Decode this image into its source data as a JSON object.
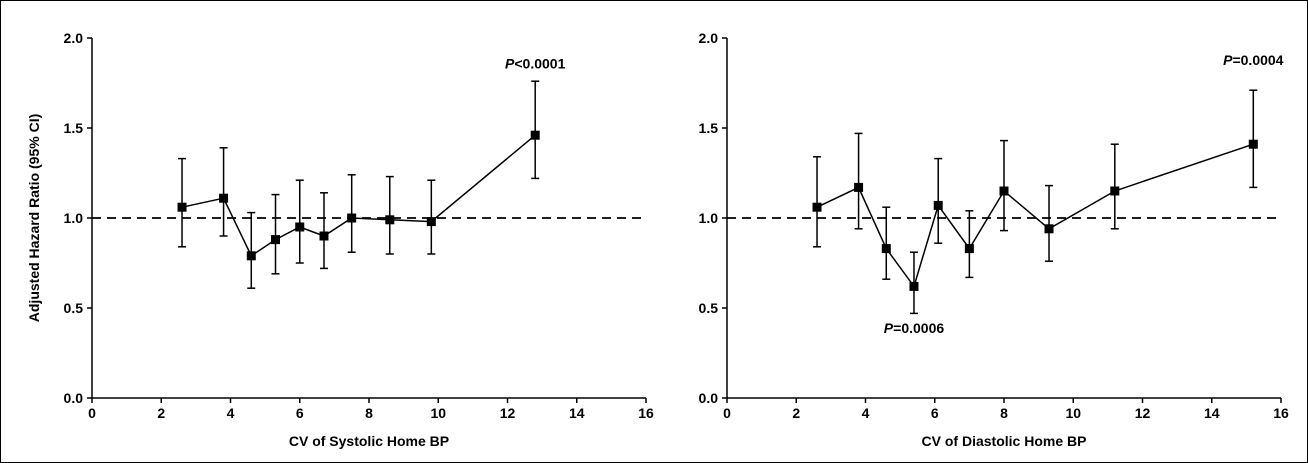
{
  "chart_data": [
    {
      "type": "scatter",
      "title": "",
      "xlabel": "CV of Systolic Home BP",
      "ylabel": "Adjusted Hazard Ratio (95% CI)",
      "xlim": [
        0,
        16
      ],
      "ylim": [
        0.0,
        2.0
      ],
      "xticks": [
        0,
        2,
        4,
        6,
        8,
        10,
        12,
        14,
        16
      ],
      "yticks": [
        0.0,
        0.5,
        1.0,
        1.5,
        2.0
      ],
      "reference_line": 1.0,
      "series": [
        {
          "x": [
            2.6,
            3.8,
            4.6,
            5.3,
            6.0,
            6.7,
            7.5,
            8.6,
            9.8,
            12.8
          ],
          "y": [
            1.06,
            1.11,
            0.79,
            0.88,
            0.95,
            0.9,
            1.0,
            0.99,
            0.98,
            1.46
          ],
          "lower": [
            0.84,
            0.9,
            0.61,
            0.69,
            0.75,
            0.72,
            0.81,
            0.8,
            0.8,
            1.22
          ],
          "upper": [
            1.33,
            1.39,
            1.03,
            1.13,
            1.21,
            1.14,
            1.24,
            1.23,
            1.21,
            1.76
          ]
        }
      ],
      "annotations": [
        {
          "italic": "P",
          "rest": "<0.0001",
          "x": 12.8,
          "y": 1.83
        }
      ]
    },
    {
      "type": "scatter",
      "title": "",
      "xlabel": "CV of Diastolic Home BP",
      "ylabel": "",
      "xlim": [
        0,
        16
      ],
      "ylim": [
        0.0,
        2.0
      ],
      "xticks": [
        0,
        2,
        4,
        6,
        8,
        10,
        12,
        14,
        16
      ],
      "yticks": [
        0.0,
        0.5,
        1.0,
        1.5,
        2.0
      ],
      "reference_line": 1.0,
      "series": [
        {
          "x": [
            2.6,
            3.8,
            4.6,
            5.4,
            6.1,
            7.0,
            8.0,
            9.3,
            11.2,
            15.2
          ],
          "y": [
            1.06,
            1.17,
            0.83,
            0.62,
            1.07,
            0.83,
            1.15,
            0.94,
            1.15,
            1.41
          ],
          "lower": [
            0.84,
            0.94,
            0.66,
            0.47,
            0.86,
            0.67,
            0.93,
            0.76,
            0.94,
            1.17
          ],
          "upper": [
            1.34,
            1.47,
            1.06,
            0.81,
            1.33,
            1.04,
            1.43,
            1.18,
            1.41,
            1.71
          ]
        }
      ],
      "annotations": [
        {
          "italic": "P",
          "rest": "=0.0006",
          "x": 5.4,
          "y": 0.36
        },
        {
          "italic": "P",
          "rest": "=0.0004",
          "x": 15.2,
          "y": 1.85
        }
      ]
    }
  ]
}
